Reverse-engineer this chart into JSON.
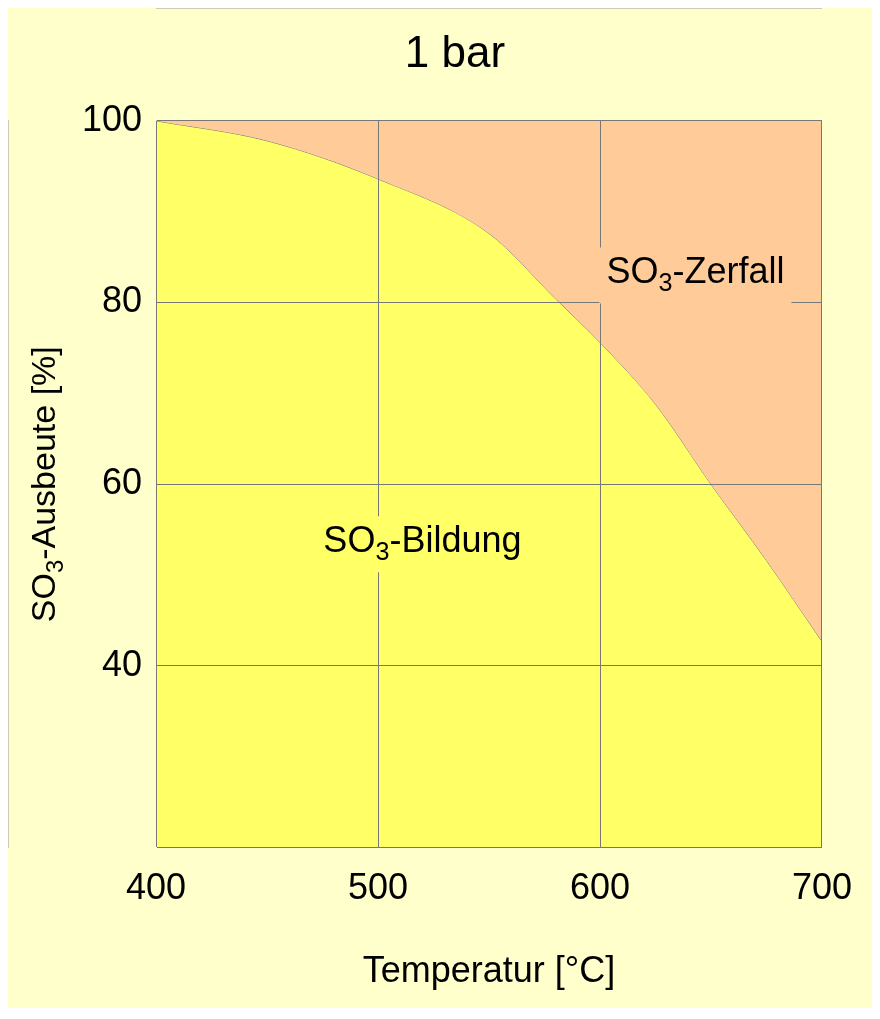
{
  "chart_data": {
    "type": "area",
    "title": "1 bar",
    "xlabel": "Temperatur [°C]",
    "ylabel": "SO$_{3}$-Ausbeute [%]",
    "x": [
      400,
      450,
      500,
      550,
      580,
      600,
      625,
      650,
      675,
      700
    ],
    "series": [
      {
        "name": "SO$_{3}$-Bildung",
        "color": "#ffff66",
        "values": [
          100,
          97.8,
          93.6,
          87.6,
          80.4,
          75.6,
          68.8,
          60,
          51.6,
          42.7
        ]
      },
      {
        "name": "SO$_{3}$-Zerfall",
        "color": "#ffcc99",
        "values": [
          100,
          100,
          100,
          100,
          100,
          100,
          100,
          100,
          100,
          100
        ]
      }
    ],
    "xlim": [
      400,
      700
    ],
    "xticks": [
      400,
      500,
      600,
      700
    ],
    "ylim": [
      20,
      100
    ],
    "yticks": [
      {
        "value": 20,
        "label": null
      },
      40,
      60,
      80,
      100
    ],
    "grid": true,
    "legend": false
  }
}
